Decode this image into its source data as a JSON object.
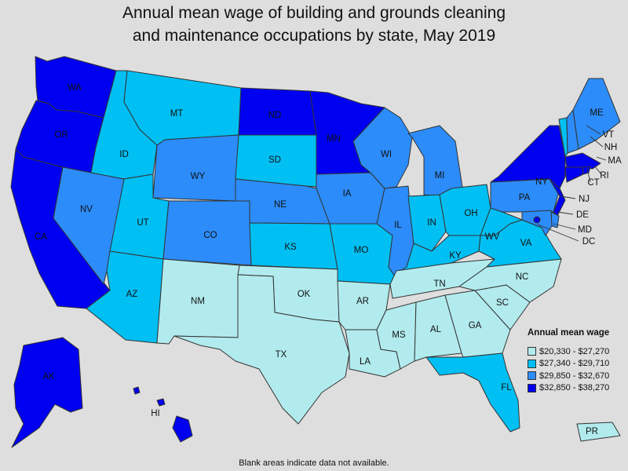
{
  "title_line1": "Annual mean wage of building and grounds cleaning",
  "title_line2": "and maintenance occupations by state, May 2019",
  "legend": {
    "title": "Annual mean wage",
    "bins": [
      {
        "label": "$20,330 - $27,270",
        "color": "#b2ebee"
      },
      {
        "label": "$27,340 - $29,710",
        "color": "#00bff3"
      },
      {
        "label": "$29,850 - $32,670",
        "color": "#2c8cf9"
      },
      {
        "label": "$32,850 - $38,270",
        "color": "#0000f0"
      }
    ]
  },
  "footnote": "Blank areas indicate data not available.",
  "states": {
    "WA": 3,
    "OR": 3,
    "CA": 3,
    "NV": 2,
    "ID": 1,
    "MT": 1,
    "WY": 2,
    "UT": 1,
    "AZ": 1,
    "CO": 2,
    "NM": 0,
    "ND": 3,
    "SD": 1,
    "NE": 2,
    "KS": 1,
    "OK": 0,
    "TX": 0,
    "MN": 3,
    "IA": 2,
    "MO": 1,
    "AR": 0,
    "LA": 0,
    "WI": 2,
    "IL": 2,
    "MI": 2,
    "IN": 1,
    "OH": 1,
    "KY": 1,
    "TN": 0,
    "MS": 0,
    "AL": 0,
    "GA": 0,
    "FL": 1,
    "SC": 0,
    "NC": 0,
    "VA": 1,
    "WV": 1,
    "PA": 2,
    "NY": 3,
    "VT": 1,
    "NH": 2,
    "ME": 2,
    "MA": 3,
    "RI": 3,
    "CT": 3,
    "NJ": 3,
    "DE": 2,
    "MD": 2,
    "DC": 3,
    "AK": 3,
    "HI": 3,
    "PR": 0
  }
}
